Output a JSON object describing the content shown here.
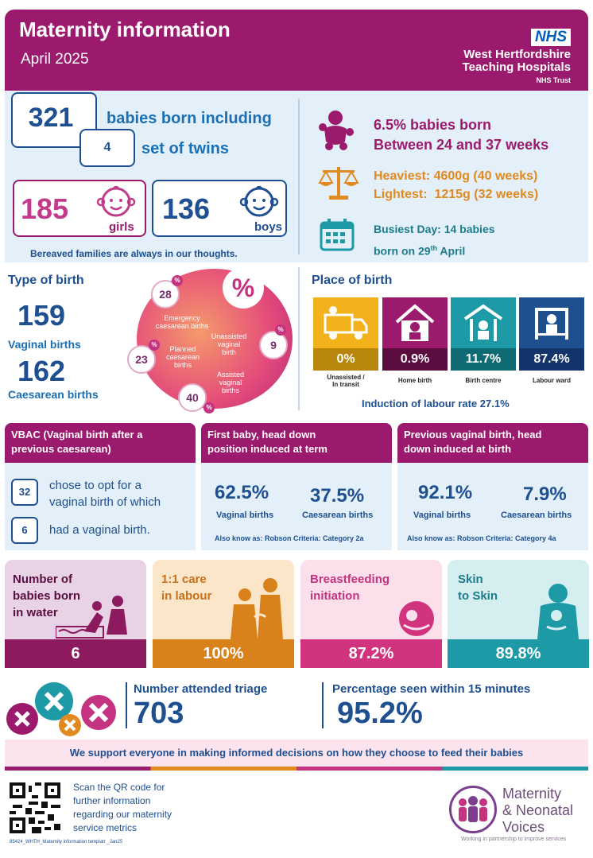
{
  "header": {
    "title": "Maternity information",
    "subtitle": "April 2025",
    "nhs_logo": "NHS",
    "trust_line1": "West Hertfordshire",
    "trust_line2": "Teaching Hospitals",
    "trust_line3": "NHS Trust"
  },
  "births": {
    "total": "321",
    "total_text": "babies born including",
    "twins": "4",
    "twins_text": "set of twins",
    "girls": "185",
    "girls_label": "girls",
    "boys": "136",
    "boys_label": "boys",
    "bereaved": "Bereaved families are always in our thoughts."
  },
  "highlights": {
    "preterm_line1": "6.5% babies born",
    "preterm_line2": "Between 24 and 37 weeks",
    "heaviest": "Heaviest: 4600g (40 weeks)",
    "lightest": "Lightest:  1215g (32 weeks)",
    "busiest_line1": "Busiest Day: 14 babies",
    "busiest_line2_pre": "born on 29",
    "busiest_line2_sup": "th",
    "busiest_line2_post": " April"
  },
  "type_of_birth": {
    "title": "Type of birth",
    "vaginal_num": "159",
    "vaginal_label": "Vaginal births",
    "caesarean_num": "162",
    "caesarean_label": "Caesarean births",
    "percent_symbol": "%",
    "bubble_symbol": "%",
    "emergency_pct": "28",
    "emergency_label_1": "Emergency",
    "emergency_label_2": "caesarean births",
    "planned_pct": "23",
    "planned_label_1": "Planned",
    "planned_label_2": "caesarean",
    "planned_label_3": "births",
    "unassisted_pct": "9",
    "unassisted_label_1": "Unassisted",
    "unassisted_label_2": "vaginal",
    "unassisted_label_3": "birth",
    "assisted_pct": "40",
    "assisted_label_1": "Assisted",
    "assisted_label_2": "vaginal",
    "assisted_label_3": "births"
  },
  "place_of_birth": {
    "title": "Place of birth",
    "places": [
      {
        "pct": "0%",
        "label_1": "Unassisted /",
        "label_2": "In transit",
        "color": "#f2b21c",
        "bar": "#b8860b"
      },
      {
        "pct": "0.9%",
        "label_1": "Home birth",
        "label_2": "",
        "color": "#9b1a6d",
        "bar": "#5c0d3f"
      },
      {
        "pct": "11.7%",
        "label_1": "Birth centre",
        "label_2": "",
        "color": "#1d9aa5",
        "bar": "#0f6a73"
      },
      {
        "pct": "87.4%",
        "label_1": "Labour ward",
        "label_2": "",
        "color": "#1d4f91",
        "bar": "#12346a"
      }
    ],
    "induction": "Induction of labour rate 27.1%"
  },
  "vbac": {
    "title_1": "VBAC (Vaginal birth after a",
    "title_2": "previous caesarean)",
    "opted_num": "32",
    "opted_text_1": "chose to opt for a",
    "opted_text_2": "vaginal birth of which",
    "had_num": "6",
    "had_text": "had a vaginal birth."
  },
  "first_baby": {
    "title_1": "First baby, head down",
    "title_2": "position induced at term",
    "vaginal_pct": "62.5%",
    "vaginal_label": "Vaginal births",
    "caesarean_pct": "37.5%",
    "caesarean_label": "Caesarean births",
    "robson": "Also know as: Robson Criteria: Category 2a"
  },
  "previous_vaginal": {
    "title_1": "Previous vaginal birth, head",
    "title_2": "down induced at birth",
    "vaginal_pct": "92.1%",
    "vaginal_label": "Vaginal births",
    "caesarean_pct": "7.9%",
    "caesarean_label": "Caesarean births",
    "robson": "Also know as: Robson Criteria: Category 4a"
  },
  "tiles": [
    {
      "title_1": "Number of",
      "title_2": "babies born",
      "title_3": "in water",
      "value": "6",
      "bg": "#e7d3e5",
      "bar": "#8d1a5f",
      "text": "#5c0d3f"
    },
    {
      "title_1": "1:1 care",
      "title_2": "in labour",
      "title_3": "",
      "value": "100%",
      "bg": "#fbe6c9",
      "bar": "#d9811a",
      "text": "#c9701a"
    },
    {
      "title_1": "Breastfeeding",
      "title_2": "initiation",
      "title_3": "",
      "value": "87.2%",
      "bg": "#fbe0ec",
      "bar": "#d1337f",
      "text": "#c43380"
    },
    {
      "title_1": "Skin",
      "title_2": "to Skin",
      "title_3": "",
      "value": "89.8%",
      "bg": "#d5eef0",
      "bar": "#1d9aa5",
      "text": "#1d7c8c"
    }
  ],
  "triage": {
    "attended_label": "Number attended triage",
    "attended_num": "703",
    "seen_label": "Percentage seen within 15 minutes",
    "seen_pct": "95.2%"
  },
  "feeding_banner": "We support everyone in making informed decisions on how they choose to feed their babies",
  "footer": {
    "qr_line1": "Scan the QR code for",
    "qr_line2": "further information",
    "qr_line3": "regarding our maternity",
    "qr_line4": "service metrics",
    "reference": "85424_WHTH_Maternity information templatr _Jan25",
    "mnv_line1": "Maternity",
    "mnv_line2": "& Neonatal",
    "mnv_line3": "Voices",
    "mnv_tagline": "Working in partnership to improve services"
  },
  "colors": {
    "primary_purple": "#9b1a6d",
    "navy": "#1d4f91",
    "orange": "#e18a21",
    "teal": "#1d9aa5",
    "pink": "#c43380",
    "panel_blue": "#e3f0f9"
  }
}
